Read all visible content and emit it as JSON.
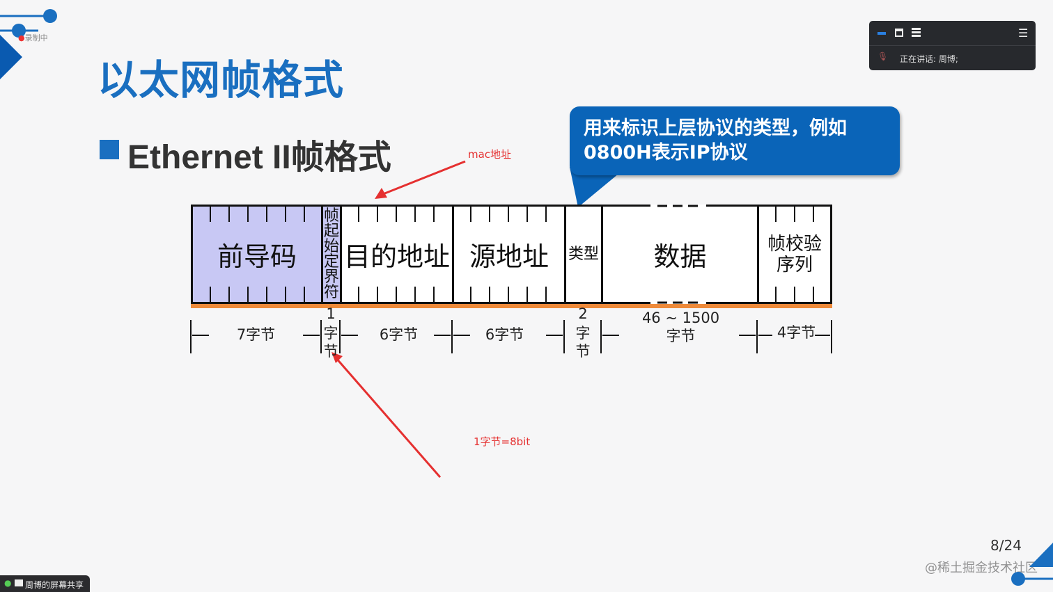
{
  "recording": {
    "label": "录制中"
  },
  "slide": {
    "title": "以太网帧格式",
    "subtitle": "Ethernet II帧格式",
    "callout": "用来标识上层协议的类型，例如0800H表示IP协议",
    "annotation_mac": "mac地址",
    "annotation_byte": "1字节=8bit",
    "fields": [
      {
        "name": "前导码",
        "size": "7字节"
      },
      {
        "name": "帧起始定界符",
        "size_top": "1",
        "size": "字节"
      },
      {
        "name": "目的地址",
        "size": "6字节"
      },
      {
        "name": "源地址",
        "size": "6字节"
      },
      {
        "name": "类型",
        "size_top": "2",
        "size": "字节"
      },
      {
        "name": "数据",
        "size_top": "46 ~ 1500",
        "size": "字节"
      },
      {
        "name": "帧校验序列",
        "size": "4字节"
      }
    ],
    "page": "8/24",
    "preamble_color": "#c8c8f4",
    "accent": "#1a6fc0"
  },
  "meeting_panel": {
    "speaking_label": "正在讲话:",
    "speaker": "周博;"
  },
  "screen_share": {
    "label": "周博的屏幕共享"
  },
  "watermark": "@稀土掘金技术社区"
}
